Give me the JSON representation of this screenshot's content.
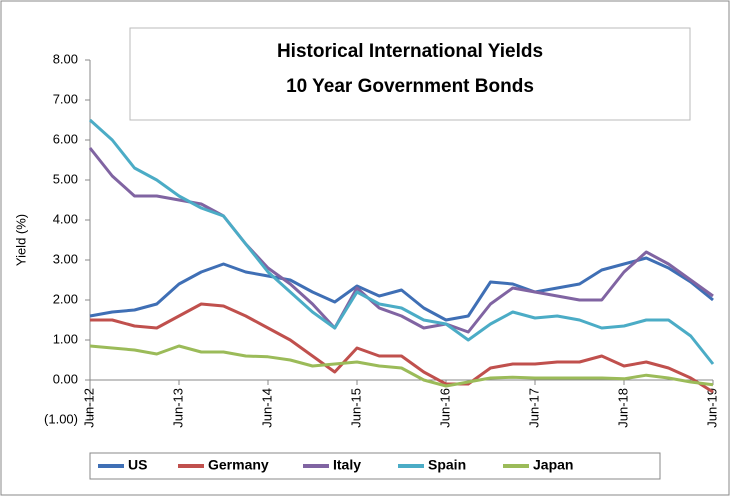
{
  "chart_data": {
    "type": "line",
    "title": "Historical International Yields",
    "subtitle": "10 Year Government Bonds",
    "y_label": "Yield (%)",
    "categories": [
      "Jun-12",
      null,
      null,
      null,
      "Jun-13",
      null,
      null,
      null,
      "Jun-14",
      null,
      null,
      null,
      "Jun-15",
      null,
      null,
      null,
      "Jun-16",
      null,
      null,
      null,
      "Jun-17",
      null,
      null,
      null,
      "Jun-18",
      null,
      null,
      null,
      "Jun-19"
    ],
    "series": [
      {
        "name": "US",
        "color": "#3f6fb5",
        "values": [
          1.6,
          1.7,
          1.75,
          1.9,
          2.4,
          2.7,
          2.9,
          2.7,
          2.6,
          2.5,
          2.2,
          1.95,
          2.35,
          2.1,
          2.25,
          1.8,
          1.5,
          1.6,
          2.45,
          2.4,
          2.2,
          2.3,
          2.4,
          2.75,
          2.9,
          3.05,
          2.8,
          2.45,
          2.0
        ]
      },
      {
        "name": "Germany",
        "color": "#c0504d",
        "values": [
          1.5,
          1.5,
          1.35,
          1.3,
          1.6,
          1.9,
          1.85,
          1.6,
          1.3,
          1.0,
          0.6,
          0.2,
          0.8,
          0.6,
          0.6,
          0.2,
          -0.1,
          -0.1,
          0.3,
          0.4,
          0.4,
          0.45,
          0.45,
          0.6,
          0.35,
          0.45,
          0.3,
          0.05,
          -0.3
        ]
      },
      {
        "name": "Italy",
        "color": "#8064a2",
        "values": [
          5.8,
          5.1,
          4.6,
          4.6,
          4.5,
          4.4,
          4.1,
          3.4,
          2.8,
          2.4,
          1.9,
          1.3,
          2.3,
          1.8,
          1.6,
          1.3,
          1.4,
          1.2,
          1.9,
          2.3,
          2.2,
          2.1,
          2.0,
          2.0,
          2.7,
          3.2,
          2.9,
          2.5,
          2.1
        ]
      },
      {
        "name": "Spain",
        "color": "#4bacc6",
        "values": [
          6.5,
          6.0,
          5.3,
          5.0,
          4.6,
          4.3,
          4.1,
          3.4,
          2.7,
          2.2,
          1.7,
          1.3,
          2.2,
          1.9,
          1.8,
          1.5,
          1.4,
          1.0,
          1.4,
          1.7,
          1.55,
          1.6,
          1.5,
          1.3,
          1.35,
          1.5,
          1.5,
          1.1,
          0.4
        ]
      },
      {
        "name": "Japan",
        "color": "#9bbb59",
        "values": [
          0.85,
          0.8,
          0.75,
          0.65,
          0.85,
          0.7,
          0.7,
          0.6,
          0.58,
          0.5,
          0.35,
          0.4,
          0.45,
          0.35,
          0.3,
          0.0,
          -0.15,
          -0.05,
          0.05,
          0.07,
          0.05,
          0.05,
          0.05,
          0.05,
          0.03,
          0.12,
          0.05,
          -0.05,
          -0.12
        ]
      }
    ],
    "ylim": [
      -1,
      8
    ],
    "yticks": [
      {
        "value": -1,
        "label": "(1.00)"
      },
      {
        "value": 0,
        "label": "0.00"
      },
      {
        "value": 1,
        "label": "1.00"
      },
      {
        "value": 2,
        "label": "2.00"
      },
      {
        "value": 3,
        "label": "3.00"
      },
      {
        "value": 4,
        "label": "4.00"
      },
      {
        "value": 5,
        "label": "5.00"
      },
      {
        "value": 6,
        "label": "6.00"
      },
      {
        "value": 7,
        "label": "7.00"
      },
      {
        "value": 8,
        "label": "8.00"
      }
    ],
    "grid": false,
    "legend": "bottom"
  }
}
